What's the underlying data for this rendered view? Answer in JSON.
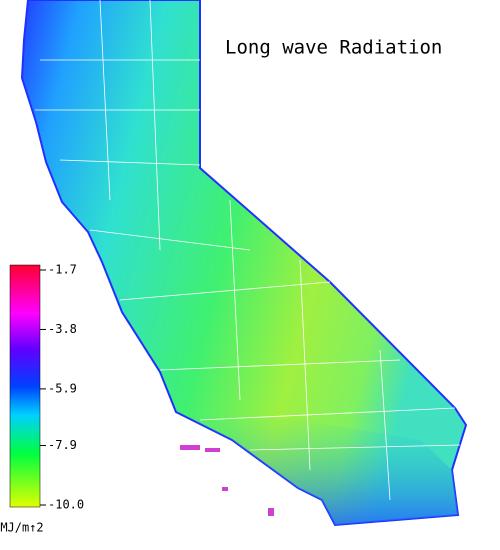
{
  "title": "Long wave Radiation",
  "colorbar": {
    "ticks": [
      -1.7,
      -3.8,
      -5.9,
      -7.9,
      {
        "value": -10,
        "label": "-10.0"
      }
    ],
    "unit": "MJ/m↑2"
  }
}
